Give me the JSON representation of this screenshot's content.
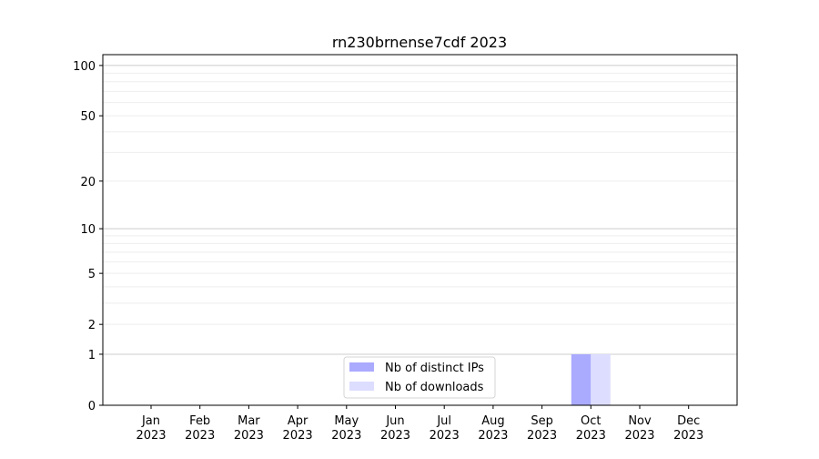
{
  "chart_data": {
    "type": "bar",
    "title": "rn230brnense7cdf 2023",
    "xlabel": "",
    "ylabel": "",
    "yscale": "log(1+y)",
    "ylim": [
      0,
      116
    ],
    "yticks": [
      0,
      1,
      2,
      5,
      10,
      20,
      50,
      100
    ],
    "grid": true,
    "legend_position": "lower-center",
    "categories": [
      "Jan\n2023",
      "Feb\n2023",
      "Mar\n2023",
      "Apr\n2023",
      "May\n2023",
      "Jun\n2023",
      "Jul\n2023",
      "Aug\n2023",
      "Sep\n2023",
      "Oct\n2023",
      "Nov\n2023",
      "Dec\n2023"
    ],
    "series": [
      {
        "name": "Nb of distinct IPs",
        "color": "#aaaaff",
        "values": [
          0,
          0,
          0,
          0,
          0,
          0,
          0,
          0,
          0,
          1,
          0,
          0
        ]
      },
      {
        "name": "Nb of downloads",
        "color": "#ddddff",
        "values": [
          0,
          0,
          0,
          0,
          0,
          0,
          0,
          0,
          0,
          1,
          0,
          0
        ]
      }
    ]
  }
}
